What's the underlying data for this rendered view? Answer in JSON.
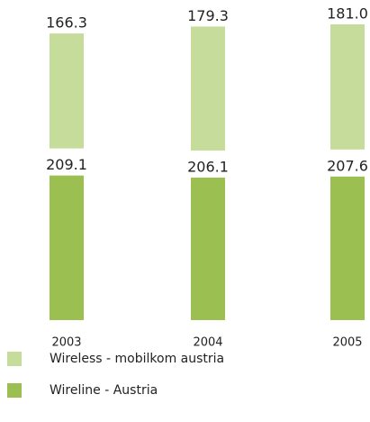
{
  "chart_data": {
    "type": "bar",
    "stacked": true,
    "categories": [
      "2003",
      "2004",
      "2005"
    ],
    "series": [
      {
        "name": "Wireline - Austria",
        "color": "#9bbf50",
        "values": [
          209.1,
          206.1,
          207.6
        ]
      },
      {
        "name": "Wireless - mobilkom austria",
        "color": "#c5dc9a",
        "values": [
          166.3,
          179.3,
          181.0
        ],
        "value_labels": [
          "166.3",
          "179.3",
          "181.0"
        ]
      }
    ]
  }
}
